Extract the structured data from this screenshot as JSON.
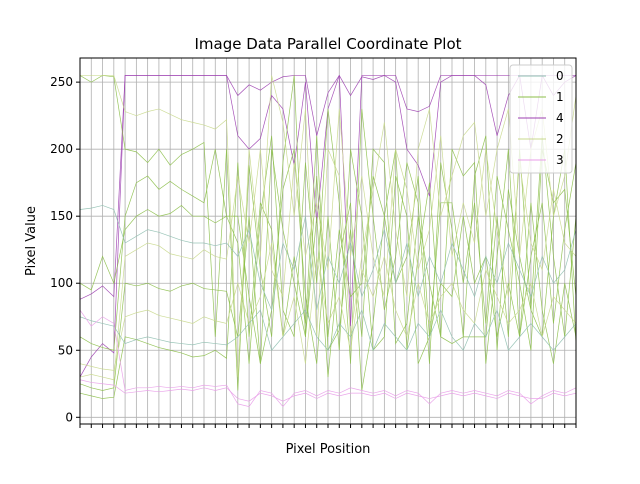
{
  "chart_data": {
    "type": "line",
    "chart_kind": "parallel-coordinates",
    "title": "Image Data Parallel Coordinate Plot",
    "xlabel": "Pixel Position",
    "ylabel": "Pixel Value",
    "xlim": [
      0,
      44
    ],
    "ylim": [
      -5,
      268
    ],
    "y_ticks": [
      0,
      50,
      100,
      150,
      200,
      250
    ],
    "x_tick_count": 45,
    "x_tick_labels_shown": false,
    "grid": true,
    "legend_position": "top-right",
    "colors": {
      "class_0": "#8fbfb0",
      "class_1": "#8cbf4a",
      "class_4": "#9c3fb0",
      "class_2": "#c8d88c",
      "class_3": "#e89ce8",
      "grid": "#b0b0b0"
    },
    "legend": [
      "0",
      "1",
      "4",
      "2",
      "3"
    ],
    "series": [
      {
        "name": "4",
        "color": "#9c3fb0",
        "values": [
          88,
          92,
          98,
          90,
          255,
          255,
          255,
          255,
          255,
          255,
          255,
          255,
          255,
          255,
          240,
          248,
          244,
          250,
          254,
          255,
          255,
          210,
          242,
          255,
          240,
          254,
          252,
          255,
          255,
          230,
          228,
          232,
          255,
          255,
          255,
          255,
          255,
          255,
          255,
          255,
          255,
          255,
          255,
          255,
          255
        ]
      },
      {
        "name": "4",
        "color": "#9c3fb0",
        "values": [
          30,
          45,
          55,
          48,
          255,
          255,
          255,
          255,
          255,
          255,
          255,
          255,
          255,
          255,
          210,
          200,
          208,
          240,
          230,
          188,
          250,
          145,
          230,
          255,
          68,
          255,
          255,
          255,
          250,
          200,
          188,
          165,
          250,
          255,
          255,
          255,
          248,
          210,
          240,
          255,
          200,
          255,
          240,
          250,
          255
        ]
      },
      {
        "name": "1",
        "color": "#8cbf4a",
        "values": [
          255,
          250,
          255,
          254,
          200,
          198,
          190,
          200,
          188,
          196,
          200,
          205,
          60,
          200,
          20,
          188,
          110,
          60,
          190,
          255,
          60,
          150,
          30,
          120,
          160,
          20,
          70,
          150,
          200,
          50,
          120,
          175,
          60,
          200,
          180,
          190,
          40,
          120,
          200,
          60,
          120,
          160,
          70,
          140,
          190
        ]
      },
      {
        "name": "1",
        "color": "#8cbf4a",
        "values": [
          60,
          55,
          52,
          50,
          150,
          175,
          180,
          170,
          176,
          170,
          165,
          160,
          200,
          150,
          130,
          40,
          150,
          210,
          80,
          60,
          190,
          100,
          230,
          160,
          40,
          230,
          150,
          80,
          120,
          190,
          160,
          40,
          190,
          140,
          60,
          180,
          210,
          50,
          170,
          120,
          80,
          210,
          120,
          60,
          150
        ]
      },
      {
        "name": "1",
        "color": "#8cbf4a",
        "values": [
          18,
          16,
          14,
          15,
          60,
          58,
          55,
          52,
          50,
          48,
          45,
          46,
          50,
          44,
          190,
          60,
          160,
          140,
          60,
          120,
          70,
          210,
          50,
          65,
          140,
          60,
          200,
          190,
          55,
          70,
          150,
          100,
          60,
          55,
          60,
          60,
          60,
          150,
          60,
          200,
          80,
          60,
          150,
          200,
          55
        ]
      },
      {
        "name": "1",
        "color": "#8cbf4a",
        "values": [
          25,
          22,
          20,
          22,
          100,
          98,
          100,
          96,
          94,
          98,
          100,
          96,
          95,
          94,
          60,
          150,
          40,
          80,
          170,
          200,
          90,
          40,
          150,
          50,
          200,
          150,
          50,
          60,
          180,
          150,
          40,
          60,
          100,
          90,
          150,
          100,
          120,
          60,
          100,
          60,
          160,
          80,
          40,
          100,
          60
        ]
      },
      {
        "name": "1",
        "color": "#8cbf4a",
        "values": [
          100,
          95,
          120,
          100,
          140,
          150,
          155,
          150,
          152,
          158,
          150,
          150,
          145,
          150,
          150,
          90,
          40,
          200,
          140,
          100,
          60,
          180,
          60,
          140,
          90,
          100,
          180,
          150,
          100,
          120,
          180,
          60,
          160,
          160,
          100,
          160,
          70,
          180,
          140,
          100,
          50,
          200,
          160,
          170,
          90
        ]
      },
      {
        "name": "2",
        "color": "#c8d88c",
        "values": [
          255,
          255,
          255,
          255,
          228,
          225,
          228,
          230,
          226,
          222,
          220,
          218,
          215,
          222,
          30,
          200,
          120,
          255,
          220,
          150,
          230,
          60,
          200,
          180,
          60,
          120,
          170,
          220,
          140,
          90,
          200,
          230,
          150,
          180,
          210,
          220,
          150,
          200,
          230,
          120,
          200,
          230,
          150,
          180,
          240
        ]
      },
      {
        "name": "2",
        "color": "#c8d88c",
        "values": [
          30,
          32,
          30,
          28,
          120,
          125,
          130,
          128,
          122,
          120,
          118,
          125,
          120,
          118,
          180,
          130,
          200,
          110,
          90,
          190,
          120,
          160,
          110,
          230,
          120,
          180,
          120,
          90,
          200,
          170,
          110,
          140,
          210,
          120,
          160,
          130,
          200,
          140,
          90,
          190,
          130,
          110,
          170,
          130,
          120
        ]
      },
      {
        "name": "2",
        "color": "#c8d88c",
        "values": [
          40,
          38,
          36,
          35,
          75,
          78,
          80,
          76,
          74,
          72,
          70,
          75,
          72,
          70,
          100,
          70,
          90,
          130,
          60,
          90,
          40,
          120,
          70,
          90,
          50,
          110,
          90,
          120,
          80,
          60,
          100,
          70,
          90,
          100,
          80,
          70,
          110,
          90,
          70,
          80,
          100,
          60,
          90,
          80,
          70
        ]
      },
      {
        "name": "0",
        "color": "#8fbfb0",
        "values": [
          155,
          156,
          158,
          155,
          130,
          135,
          140,
          138,
          135,
          132,
          130,
          130,
          128,
          130,
          120,
          140,
          100,
          80,
          130,
          110,
          150,
          80,
          120,
          100,
          130,
          90,
          110,
          140,
          100,
          130,
          90,
          120,
          100,
          130,
          110,
          90,
          120,
          100,
          130,
          110,
          90,
          120,
          100,
          110,
          140
        ]
      },
      {
        "name": "0",
        "color": "#8fbfb0",
        "values": [
          75,
          72,
          70,
          68,
          55,
          58,
          60,
          58,
          56,
          55,
          54,
          56,
          55,
          54,
          60,
          70,
          80,
          50,
          60,
          70,
          80,
          60,
          50,
          70,
          60,
          80,
          50,
          70,
          60,
          50,
          70,
          60,
          80,
          60,
          50,
          70,
          60,
          80,
          50,
          60,
          70,
          60,
          50,
          60,
          70
        ]
      },
      {
        "name": "3",
        "color": "#e89ce8",
        "values": [
          80,
          68,
          75,
          70,
          20,
          22,
          22,
          23,
          22,
          23,
          22,
          24,
          23,
          24,
          10,
          8,
          20,
          18,
          8,
          18,
          20,
          16,
          20,
          18,
          22,
          20,
          18,
          20,
          16,
          20,
          18,
          10,
          18,
          20,
          18,
          20,
          18,
          16,
          20,
          18,
          10,
          16,
          20,
          18,
          22
        ]
      },
      {
        "name": "3",
        "color": "#e89ce8",
        "values": [
          28,
          26,
          25,
          24,
          18,
          19,
          20,
          19,
          20,
          21,
          20,
          22,
          20,
          22,
          14,
          12,
          18,
          16,
          12,
          16,
          18,
          14,
          18,
          16,
          18,
          18,
          16,
          18,
          14,
          18,
          16,
          14,
          16,
          18,
          16,
          18,
          16,
          14,
          18,
          16,
          14,
          14,
          18,
          16,
          18
        ]
      }
    ]
  }
}
